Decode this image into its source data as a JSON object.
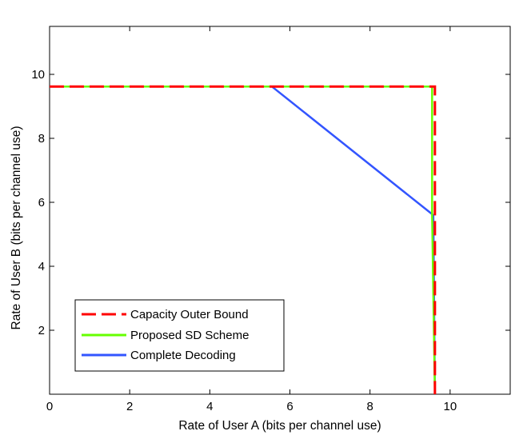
{
  "chart_data": {
    "type": "line",
    "xlabel": "Rate of User A (bits per channel use)",
    "ylabel": "Rate of User B (bits per channel use)",
    "xlim": [
      0,
      11.5
    ],
    "ylim": [
      0,
      11.5
    ],
    "x_ticks": [
      0,
      2,
      4,
      6,
      8,
      10
    ],
    "x_tick_labels": [
      "0",
      "2",
      "4",
      "6",
      "8",
      "10"
    ],
    "y_ticks": [
      2,
      4,
      6,
      8,
      10
    ],
    "y_tick_labels": [
      "2",
      "4",
      "6",
      "8",
      "10"
    ],
    "grid": false,
    "legend_position": "bottom-left",
    "series": [
      {
        "name": "Capacity Outer Bound",
        "color": "#ff0000",
        "style": "dashed",
        "x": [
          0,
          9.62,
          9.62
        ],
        "y": [
          9.62,
          9.62,
          0
        ]
      },
      {
        "name": "Proposed SD Scheme",
        "color": "#66ff00",
        "style": "solid",
        "x": [
          0,
          9.55,
          9.55,
          9.62
        ],
        "y": [
          9.62,
          9.62,
          5.6,
          0
        ]
      },
      {
        "name": "Complete Decoding",
        "color": "#3355ff",
        "style": "solid",
        "x": [
          0,
          5.55,
          9.58,
          9.62
        ],
        "y": [
          9.62,
          9.62,
          5.6,
          0
        ]
      }
    ]
  }
}
